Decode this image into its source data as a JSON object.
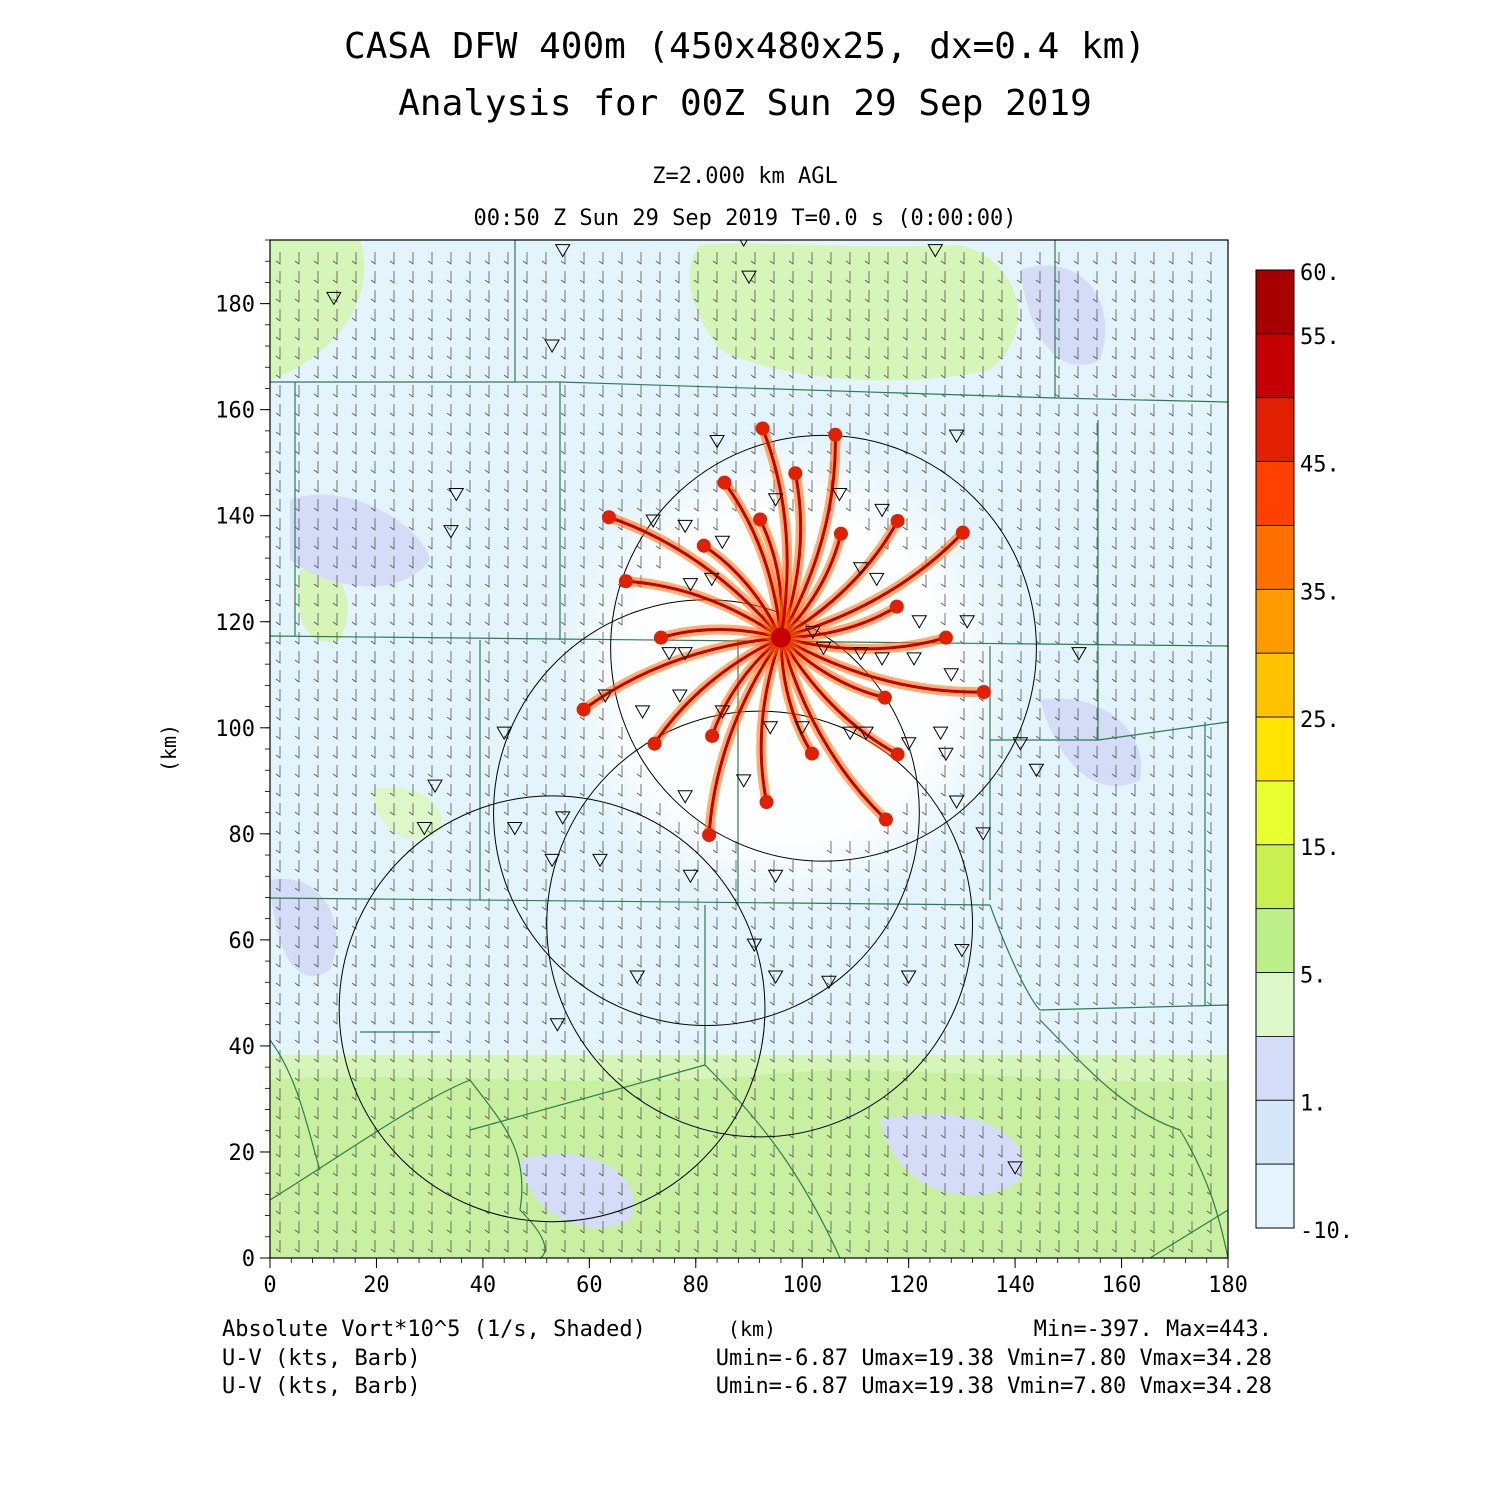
{
  "title": {
    "line1": "CASA DFW 400m (450x480x25, dx=0.4 km)",
    "line2": "Analysis for 00Z Sun 29 Sep 2019"
  },
  "subtitle": {
    "level": "Z=2.000 km AGL",
    "time": "00:50 Z Sun 29 Sep 2019    T=0.0 s (0:00:00)"
  },
  "axes": {
    "x_unit_label": "(km)",
    "y_unit_label": "(km)",
    "x_ticks": [
      "0",
      "20",
      "40",
      "60",
      "80",
      "100",
      "120",
      "140",
      "160",
      "180"
    ],
    "y_ticks": [
      "0",
      "20",
      "40",
      "60",
      "80",
      "100",
      "120",
      "140",
      "160",
      "180"
    ],
    "x_range": [
      0,
      180
    ],
    "y_range": [
      0,
      192
    ]
  },
  "colorbar": {
    "labels": [
      "60.",
      "55.",
      "45.",
      "35.",
      "25.",
      "15.",
      "5.",
      "1.",
      "-10."
    ],
    "colors": [
      "#a80000",
      "#c40000",
      "#e02000",
      "#ff4000",
      "#ff7000",
      "#ff9a00",
      "#ffc200",
      "#ffe400",
      "#e8ff30",
      "#c8f050",
      "#bdf08a",
      "#dcf8c8",
      "#d4dcf8",
      "#d4e8f8",
      "#e4f4fc"
    ]
  },
  "footer": {
    "field_label": "Absolute Vort*10^5 (1/s, Shaded)",
    "barb_label_1": "U-V (kts, Barb)",
    "barb_label_2": "U-V (kts, Barb)",
    "x_unit": "(km)",
    "minmax": "Min=-397. Max=443.",
    "uv_stats_1": "Umin=-6.87 Umax=19.38 Vmin=7.80 Vmax=34.28",
    "uv_stats_2": "Umin=-6.87 Umax=19.38 Vmin=7.80 Vmax=34.28"
  },
  "map": {
    "radar_rings": [
      {
        "cx_km": 104,
        "cy_km": 115,
        "r_km": 40
      },
      {
        "cx_km": 82,
        "cy_km": 84,
        "r_km": 40
      },
      {
        "cx_km": 92,
        "cy_km": 63,
        "r_km": 40
      },
      {
        "cx_km": 53,
        "cy_km": 47,
        "r_km": 40
      }
    ],
    "vortex_center_km": [
      96,
      117
    ],
    "station_count_hint": "inverted triangles"
  }
}
